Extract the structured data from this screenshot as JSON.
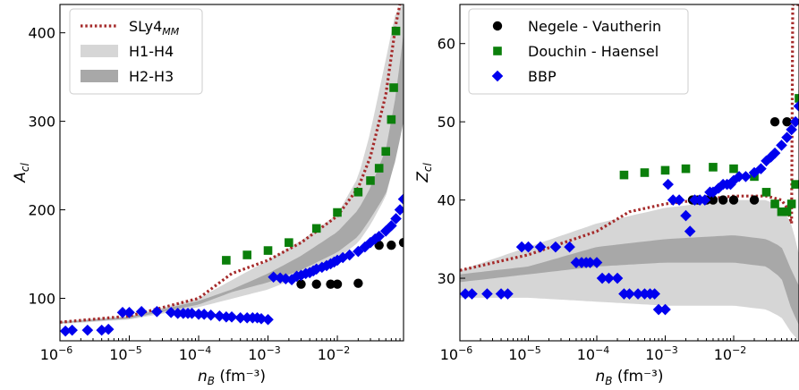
{
  "chart_data": [
    {
      "type": "scatter",
      "xlabel": "n_B (fm⁻³)",
      "ylabel": "A_cl",
      "xscale": "log",
      "xlim": [
        1e-06,
        0.09
      ],
      "ylim": [
        52,
        432
      ],
      "xticks": [
        {
          "v": 1e-06,
          "exp": "-6"
        },
        {
          "v": 1e-05,
          "exp": "-5"
        },
        {
          "v": 0.0001,
          "exp": "-4"
        },
        {
          "v": 0.001,
          "exp": "-3"
        },
        {
          "v": 0.01,
          "exp": "-2"
        }
      ],
      "yticks": [
        100,
        200,
        300,
        400
      ],
      "grid": false,
      "legend": {
        "position": "top-left",
        "entries": [
          {
            "label_main": "SLy4",
            "label_sub": "MM",
            "kind": "dotted-line"
          },
          {
            "label_main": "H1-H4",
            "label_sub": "",
            "kind": "light-band"
          },
          {
            "label_main": "H2-H3",
            "label_sub": "",
            "kind": "dark-band"
          }
        ]
      },
      "bands": {
        "light": {
          "x": [
            1e-06,
            1e-05,
            0.0001,
            0.001,
            0.003,
            0.01,
            0.02,
            0.03,
            0.05,
            0.07,
            0.09
          ],
          "lower": [
            71,
            76,
            90,
            110,
            125,
            145,
            163,
            183,
            215,
            260,
            300
          ],
          "upper": [
            74,
            80,
            100,
            143,
            165,
            195,
            237,
            288,
            370,
            425,
            432
          ]
        },
        "dark": {
          "x": [
            1e-06,
            1e-05,
            0.0001,
            0.0003,
            0.001,
            0.003,
            0.01,
            0.02,
            0.03,
            0.05,
            0.07,
            0.09
          ],
          "lower": [
            72,
            77,
            93,
            107,
            118,
            132,
            152,
            170,
            190,
            218,
            258,
            300
          ],
          "upper": [
            73,
            79,
            97,
            110,
            128,
            148,
            175,
            200,
            225,
            268,
            330,
            400
          ]
        }
      },
      "series": [
        {
          "name": "SLy4 MM",
          "kind": "dotted-line",
          "color": "#a52a2a",
          "x": [
            1e-06,
            1e-05,
            0.0001,
            0.0003,
            0.001,
            0.003,
            0.01,
            0.02,
            0.03,
            0.05,
            0.07,
            0.08
          ],
          "y": [
            73,
            80,
            100,
            128,
            143,
            163,
            193,
            225,
            260,
            330,
            410,
            432
          ]
        },
        {
          "name": "Douchin - Haensel",
          "kind": "square",
          "color": "#0b7f0b",
          "x": [
            0.00025,
            0.0005,
            0.001,
            0.002,
            0.005,
            0.01,
            0.02,
            0.03,
            0.04,
            0.05,
            0.06,
            0.065,
            0.07
          ],
          "y": [
            143,
            149,
            154,
            163,
            179,
            197,
            220,
            233,
            247,
            266,
            302,
            338,
            402
          ]
        },
        {
          "name": "Negele - Vautherin",
          "kind": "circle",
          "color": "#000000",
          "x": [
            0.003,
            0.005,
            0.008,
            0.01,
            0.02,
            0.04,
            0.06,
            0.09
          ],
          "y": [
            116,
            116,
            116,
            116,
            117,
            160,
            160,
            163
          ]
        },
        {
          "name": "BBP",
          "kind": "diamond",
          "color": "#0000ee",
          "x": [
            1.2e-06,
            1.5e-06,
            2.5e-06,
            4e-06,
            5e-06,
            8e-06,
            1e-05,
            1.5e-05,
            2.5e-05,
            4e-05,
            5e-05,
            6e-05,
            7e-05,
            8e-05,
            0.0001,
            0.00012,
            0.00015,
            0.0002,
            0.00025,
            0.0003,
            0.0004,
            0.0005,
            0.0006,
            0.0007,
            0.0008,
            0.001,
            0.0012,
            0.0015,
            0.0018,
            0.0022,
            0.0026,
            0.003,
            0.0035,
            0.004,
            0.0045,
            0.005,
            0.006,
            0.007,
            0.008,
            0.009,
            0.01,
            0.012,
            0.015,
            0.02,
            0.025,
            0.03,
            0.035,
            0.04,
            0.05,
            0.06,
            0.07,
            0.08,
            0.09
          ],
          "y": [
            63,
            64,
            64,
            64,
            65,
            84,
            84,
            85,
            85,
            84,
            83,
            83,
            83,
            83,
            82,
            82,
            81,
            80,
            79,
            79,
            78,
            78,
            78,
            78,
            77,
            76,
            124,
            123,
            122,
            121,
            125,
            126,
            128,
            129,
            131,
            133,
            135,
            137,
            139,
            141,
            143,
            146,
            149,
            153,
            158,
            163,
            167,
            170,
            176,
            182,
            190,
            200,
            212
          ]
        }
      ]
    },
    {
      "type": "scatter",
      "xlabel": "n_B (fm⁻³)",
      "ylabel": "Z_cl",
      "xscale": "log",
      "xlim": [
        1e-06,
        0.09
      ],
      "ylim": [
        22,
        65
      ],
      "xticks": [
        {
          "v": 1e-06,
          "exp": "-6"
        },
        {
          "v": 1e-05,
          "exp": "-5"
        },
        {
          "v": 0.0001,
          "exp": "-4"
        },
        {
          "v": 0.001,
          "exp": "-3"
        },
        {
          "v": 0.01,
          "exp": "-2"
        }
      ],
      "yticks": [
        30,
        40,
        50,
        60
      ],
      "grid": false,
      "legend": {
        "position": "top-left",
        "entries": [
          {
            "label_main": "Negele - Vautherin",
            "kind": "circle"
          },
          {
            "label_main": "Douchin - Haensel",
            "kind": "square"
          },
          {
            "label_main": "BBP",
            "kind": "diamond"
          }
        ]
      },
      "bands": {
        "light": {
          "x": [
            1e-06,
            1e-05,
            0.0001,
            0.001,
            0.01,
            0.03,
            0.05,
            0.07,
            0.09
          ],
          "lower": [
            27.5,
            27.5,
            27,
            26.5,
            26.5,
            26,
            25,
            23,
            22
          ],
          "upper": [
            31,
            34,
            37,
            39,
            40,
            40,
            39,
            37,
            33
          ]
        },
        "dark": {
          "x": [
            1e-06,
            1e-05,
            0.0001,
            0.001,
            0.01,
            0.03,
            0.05,
            0.07,
            0.09
          ],
          "lower": [
            29.5,
            30.5,
            31.5,
            32,
            32,
            31.5,
            30,
            26,
            24
          ],
          "upper": [
            30.5,
            31.5,
            34,
            35,
            35.5,
            35,
            34,
            31,
            29
          ]
        }
      },
      "series": [
        {
          "name": "SLy4 MM",
          "kind": "dotted-line",
          "color": "#a52a2a",
          "x": [
            1e-06,
            1e-05,
            0.0001,
            0.0003,
            0.001,
            0.003,
            0.01,
            0.03,
            0.05,
            0.06,
            0.07,
            0.073,
            0.09
          ],
          "y": [
            31,
            33,
            36,
            38.5,
            39.5,
            40,
            40.5,
            40.5,
            40,
            39,
            37,
            65,
            65
          ]
        },
        {
          "name": "Negele - Vautherin",
          "kind": "circle",
          "color": "#000000",
          "x": [
            0.0025,
            0.003,
            0.004,
            0.005,
            0.007,
            0.01,
            0.02,
            0.04,
            0.06
          ],
          "y": [
            40,
            40,
            40,
            40,
            40,
            40,
            40,
            50,
            50
          ]
        },
        {
          "name": "Douchin - Haensel",
          "kind": "square",
          "color": "#0b7f0b",
          "x": [
            0.00025,
            0.0005,
            0.001,
            0.002,
            0.005,
            0.01,
            0.02,
            0.03,
            0.04,
            0.05,
            0.06,
            0.07,
            0.08,
            0.09
          ],
          "y": [
            43.2,
            43.5,
            43.8,
            44,
            44.2,
            44,
            43,
            41,
            39.5,
            38.5,
            38.5,
            39.5,
            42,
            53
          ]
        },
        {
          "name": "BBP",
          "kind": "diamond",
          "color": "#0000ee",
          "x": [
            1.2e-06,
            1.5e-06,
            2.5e-06,
            4e-06,
            5e-06,
            8e-06,
            1e-05,
            1.5e-05,
            2.5e-05,
            4e-05,
            5e-05,
            6e-05,
            7e-05,
            8e-05,
            0.0001,
            0.00012,
            0.00015,
            0.0002,
            0.00025,
            0.0003,
            0.0004,
            0.0005,
            0.0006,
            0.0007,
            0.0008,
            0.001,
            0.0011,
            0.0013,
            0.0016,
            0.002,
            0.0023,
            0.0027,
            0.0032,
            0.0038,
            0.0045,
            0.005,
            0.006,
            0.007,
            0.008,
            0.009,
            0.01,
            0.012,
            0.015,
            0.02,
            0.025,
            0.03,
            0.035,
            0.04,
            0.05,
            0.06,
            0.07,
            0.08,
            0.09
          ],
          "y": [
            28,
            28,
            28,
            28,
            28,
            34,
            34,
            34,
            34,
            34,
            32,
            32,
            32,
            32,
            32,
            30,
            30,
            30,
            28,
            28,
            28,
            28,
            28,
            28,
            26,
            26,
            42,
            40,
            40,
            38,
            36,
            40,
            40,
            40,
            41,
            41,
            41.5,
            42,
            42,
            42,
            42.5,
            43,
            43,
            43.5,
            44,
            45,
            45.5,
            46,
            47,
            48,
            49,
            50,
            52
          ]
        }
      ]
    }
  ]
}
